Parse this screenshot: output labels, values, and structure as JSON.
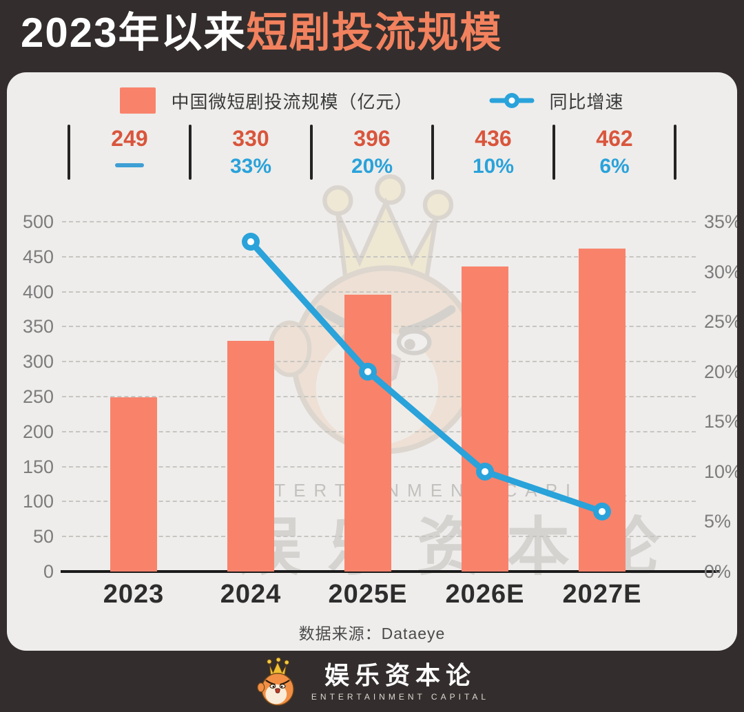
{
  "header": {
    "title_prefix": "2023年以来",
    "title_highlight": "短剧投流规模"
  },
  "legend": {
    "bar_label": "中国微短剧投流规模（亿元）",
    "line_label": "同比增速"
  },
  "stats": [
    {
      "value": "249",
      "growth": null
    },
    {
      "value": "330",
      "growth": "33%"
    },
    {
      "value": "396",
      "growth": "20%"
    },
    {
      "value": "436",
      "growth": "10%"
    },
    {
      "value": "462",
      "growth": "6%"
    }
  ],
  "chart_data": {
    "type": "bar",
    "title": "2023年以来短剧投流规模",
    "categories": [
      "2023",
      "2024",
      "2025E",
      "2026E",
      "2027E"
    ],
    "series": [
      {
        "name": "中国微短剧投流规模（亿元）",
        "type": "bar",
        "axis": "left",
        "values": [
          249,
          330,
          396,
          436,
          462
        ]
      },
      {
        "name": "同比增速",
        "type": "line",
        "axis": "right",
        "unit": "%",
        "values": [
          null,
          33,
          20,
          10,
          6
        ]
      }
    ],
    "left_axis": {
      "min": 0,
      "max": 500,
      "step": 50,
      "tick_labels": [
        "0",
        "50",
        "100",
        "150",
        "200",
        "250",
        "300",
        "350",
        "400",
        "450",
        "500"
      ]
    },
    "right_axis": {
      "min": 0,
      "max": 35,
      "step": 5,
      "suffix": "%",
      "tick_labels": [
        "0%",
        "5%",
        "10%",
        "15%",
        "20%",
        "25%",
        "30%",
        "35%"
      ]
    },
    "grid": "horizontal-dashed",
    "legend_position": "top"
  },
  "source": "数据来源：Dataeye",
  "watermark": {
    "en": "ENTERTAINMENT CAPITAL",
    "cn": "娱乐资本论"
  },
  "footer": {
    "brand_cn": "娱乐资本论",
    "brand_en": "ENTERTAINMENT CAPITAL"
  },
  "colors": {
    "frame_bg": "#332E2D",
    "panel_bg": "#EEEDEB",
    "bar": "#F9826B",
    "line": "#2AA2DA",
    "title_highlight": "#F2815E",
    "value_text": "#D9553C",
    "growth_text": "#2AA2DA"
  }
}
